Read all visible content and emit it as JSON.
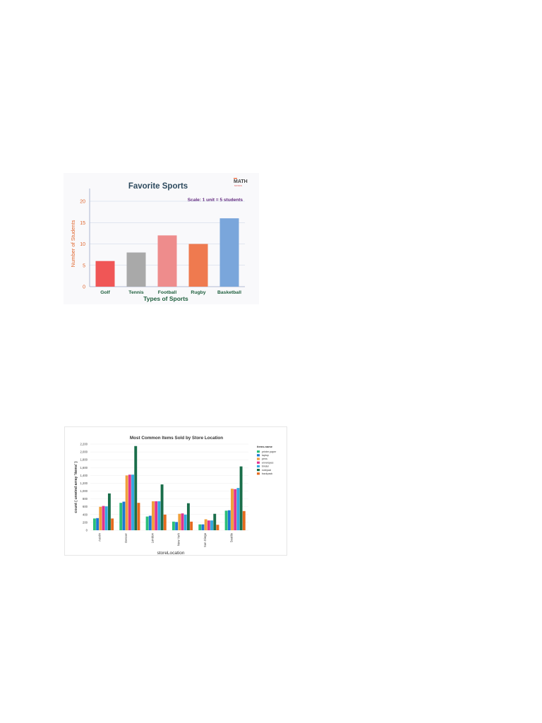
{
  "chart_data": [
    {
      "type": "bar",
      "title": "Favorite Sports",
      "subtitle": "Scale: 1 unit = 5 students",
      "logo": "MATH MONKS",
      "xlabel": "Types of Sports",
      "ylabel": "Number of Students",
      "ylim": [
        0,
        20
      ],
      "yticks": [
        "0",
        "5",
        "10",
        "15",
        "20"
      ],
      "grid": true,
      "categories": [
        "Golf",
        "Tennis",
        "Football",
        "Rugby",
        "Basketball"
      ],
      "values": [
        6,
        8,
        12,
        10,
        16
      ],
      "colors": [
        "#f05656",
        "#a9a9a9",
        "#ee8c8c",
        "#ef7a4f",
        "#7aa6db"
      ]
    },
    {
      "type": "bar",
      "title": "Most Common Items Sold by Store Location",
      "xlabel": "storeLocation",
      "ylabel": "count ( unwind array 'items' )",
      "ylim": [
        0,
        2200
      ],
      "yticks": [
        "0",
        "200",
        "400",
        "600",
        "800",
        "1,000",
        "1,200",
        "1,400",
        "1,600",
        "1,800",
        "2,000",
        "2,200"
      ],
      "grid": true,
      "legend_title": "items.name",
      "legend_position": "right",
      "categories": [
        "Austin",
        "Denver",
        "London",
        "New York",
        "San Diego",
        "Seattle"
      ],
      "series": [
        {
          "name": "printer paper",
          "color": "#2bbf7a",
          "values": [
            300,
            700,
            350,
            220,
            150,
            500
          ]
        },
        {
          "name": "laptop",
          "color": "#1f77d4",
          "values": [
            310,
            730,
            370,
            210,
            150,
            510
          ]
        },
        {
          "name": "pens",
          "color": "#f0a03c",
          "values": [
            600,
            1400,
            740,
            420,
            280,
            1060
          ]
        },
        {
          "name": "envelopes",
          "color": "#e0348f",
          "values": [
            620,
            1420,
            740,
            430,
            250,
            1050
          ]
        },
        {
          "name": "binder",
          "color": "#34a8e0",
          "values": [
            610,
            1420,
            740,
            400,
            250,
            1080
          ]
        },
        {
          "name": "notepad",
          "color": "#1a6e4a",
          "values": [
            940,
            2150,
            1170,
            690,
            420,
            1630
          ]
        },
        {
          "name": "backpack",
          "color": "#e56b1f",
          "values": [
            300,
            700,
            400,
            220,
            140,
            490
          ]
        }
      ]
    }
  ]
}
